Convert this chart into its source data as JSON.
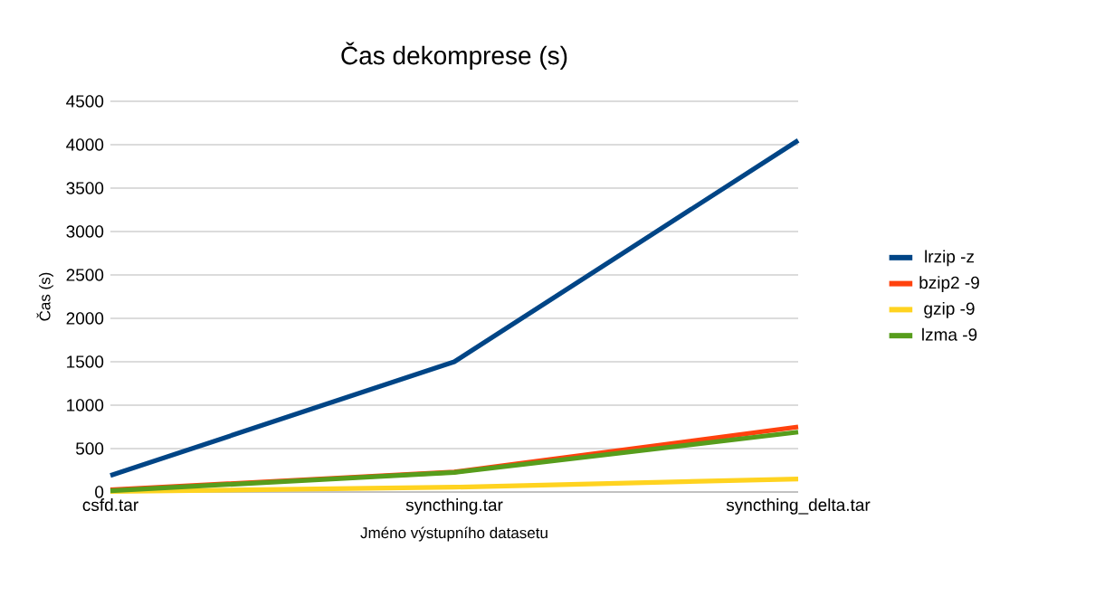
{
  "chart_data": {
    "type": "line",
    "title": "Čas  dekomprese (s)",
    "xlabel": "Jméno výstupního datasetu",
    "ylabel": "Čas (s)",
    "categories": [
      "csfd.tar",
      "syncthing.tar",
      "syncthing_delta.tar"
    ],
    "series": [
      {
        "name": "lrzip -z",
        "color": "#004586",
        "values": [
          190,
          1500,
          4050
        ]
      },
      {
        "name": "bzip2 -9",
        "color": "#ff420e",
        "values": [
          25,
          230,
          750
        ]
      },
      {
        "name": "gzip -9",
        "color": "#ffd320",
        "values": [
          5,
          55,
          150
        ]
      },
      {
        "name": "lzma -9",
        "color": "#579d1c",
        "values": [
          15,
          225,
          690
        ]
      }
    ],
    "ylim": [
      0,
      4500
    ],
    "yticks": [
      0,
      500,
      1000,
      1500,
      2000,
      2500,
      3000,
      3500,
      4000,
      4500
    ],
    "grid": "y",
    "legend": "right",
    "marker": "none",
    "line_style": "solid"
  }
}
